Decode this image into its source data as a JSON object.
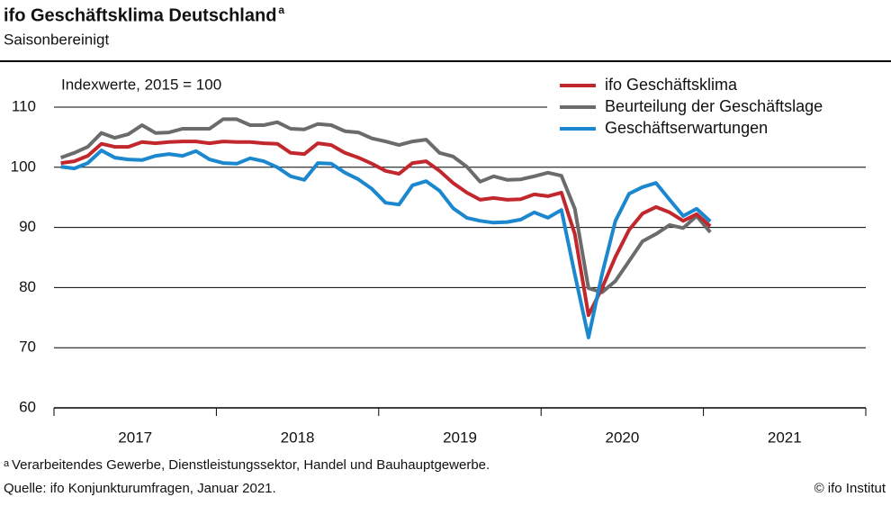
{
  "chart_data": {
    "type": "line",
    "title": "ifo Geschäftsklima Deutschland",
    "title_marker": "a",
    "subtitle": "Saisonbereinigt",
    "y_axis_note": "Indexwerte, 2015 = 100",
    "xlim": [
      2017,
      2022
    ],
    "xticks": [
      2017,
      2018,
      2019,
      2020,
      2021,
      2022
    ],
    "year_labels": [
      2017,
      2018,
      2019,
      2020,
      2021
    ],
    "ylim": [
      60,
      110
    ],
    "yticks": [
      60,
      70,
      80,
      90,
      100,
      110
    ],
    "grid": true,
    "legend": "top-right",
    "x": [
      2017.042,
      2017.125,
      2017.208,
      2017.292,
      2017.375,
      2017.458,
      2017.542,
      2017.625,
      2017.708,
      2017.792,
      2017.875,
      2017.958,
      2018.042,
      2018.125,
      2018.208,
      2018.292,
      2018.375,
      2018.458,
      2018.542,
      2018.625,
      2018.708,
      2018.792,
      2018.875,
      2018.958,
      2019.042,
      2019.125,
      2019.208,
      2019.292,
      2019.375,
      2019.458,
      2019.542,
      2019.625,
      2019.708,
      2019.792,
      2019.875,
      2019.958,
      2020.042,
      2020.125,
      2020.208,
      2020.292,
      2020.375,
      2020.458,
      2020.542,
      2020.625,
      2020.708,
      2020.792,
      2020.875,
      2020.958,
      2021.042
    ],
    "series": [
      {
        "name": "ifo Geschäftsklima",
        "color": "#c1272d",
        "values": [
          100.7,
          101.0,
          101.9,
          103.9,
          103.4,
          103.4,
          104.2,
          104.0,
          104.2,
          104.3,
          104.3,
          104.0,
          104.3,
          104.2,
          104.2,
          104.0,
          103.9,
          102.4,
          102.2,
          104.0,
          103.7,
          102.4,
          101.6,
          100.6,
          99.4,
          98.9,
          100.7,
          101.0,
          99.4,
          97.4,
          95.8,
          94.6,
          94.9,
          94.6,
          94.7,
          95.5,
          95.2,
          95.8,
          88.9,
          75.4,
          79.9,
          85.1,
          89.6,
          92.3,
          93.4,
          92.5,
          91.1,
          92.2,
          90.2
        ]
      },
      {
        "name": "Beurteilung der Geschäftslage",
        "color": "#6b6b6b",
        "values": [
          101.6,
          102.4,
          103.4,
          105.7,
          104.9,
          105.5,
          107.0,
          105.7,
          105.8,
          106.4,
          106.4,
          106.4,
          108.0,
          108.0,
          107.0,
          107.0,
          107.5,
          106.4,
          106.3,
          107.2,
          107.0,
          106.0,
          105.8,
          104.8,
          104.3,
          103.7,
          104.3,
          104.6,
          102.4,
          101.8,
          100.1,
          97.6,
          98.5,
          97.9,
          98.0,
          98.5,
          99.1,
          98.6,
          93.1,
          79.9,
          79.2,
          81.1,
          84.4,
          87.7,
          88.9,
          90.4,
          89.9,
          91.9,
          89.2
        ]
      },
      {
        "name": "Geschäftserwartungen",
        "color": "#1b87cf",
        "values": [
          100.1,
          99.8,
          100.7,
          102.8,
          101.6,
          101.3,
          101.2,
          101.9,
          102.2,
          101.9,
          102.7,
          101.3,
          100.7,
          100.6,
          101.5,
          101.0,
          100.0,
          98.5,
          97.9,
          100.7,
          100.6,
          99.1,
          98.0,
          96.4,
          94.1,
          93.8,
          97.0,
          97.7,
          96.1,
          93.2,
          91.6,
          91.1,
          90.8,
          90.9,
          91.3,
          92.5,
          91.6,
          92.9,
          82.2,
          71.7,
          82.2,
          91.1,
          95.6,
          96.7,
          97.4,
          94.6,
          91.9,
          93.1,
          91.0
        ]
      }
    ],
    "footnote": {
      "marker": "a",
      "text": "Verarbeitendes Gewerbe, Dienstleistungssektor, Handel und Bauhauptgewerbe."
    },
    "source": "Quelle: ifo Konjunkturumfragen, Januar 2021.",
    "copyright": "© ifo Institut"
  }
}
